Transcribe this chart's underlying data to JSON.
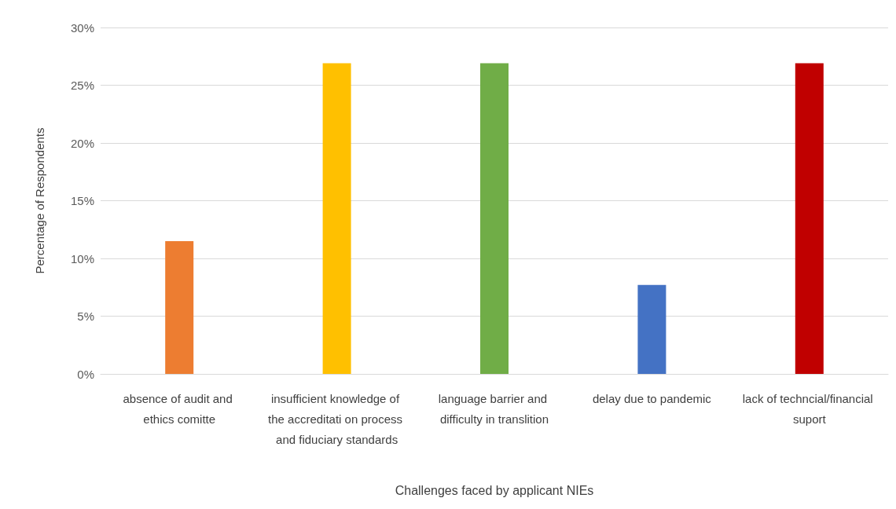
{
  "chart_data": {
    "type": "bar",
    "xlabel": "Challenges faced by applicant NIEs",
    "ylabel": "Percentage of Respondents",
    "categories": [
      "absence of audit and ethics comitte",
      "insufficient knowledge of the accreditati on process and fiduciary standards",
      "language barrier and difficulty in translition",
      "delay due to pandemic",
      "lack of techncial/financial suport"
    ],
    "values": [
      11.5,
      26.9,
      26.9,
      7.7,
      26.9
    ],
    "colors": [
      "#ed7d31",
      "#ffc000",
      "#70ad47",
      "#4472c4",
      "#c00000"
    ],
    "ylim": [
      0,
      30
    ],
    "yticks": [
      {
        "value": 0,
        "label": "0%"
      },
      {
        "value": 5,
        "label": "5%"
      },
      {
        "value": 10,
        "label": "10%"
      },
      {
        "value": 15,
        "label": "15%"
      },
      {
        "value": 20,
        "label": "20%"
      },
      {
        "value": 25,
        "label": "25%"
      },
      {
        "value": 30,
        "label": "30%"
      }
    ],
    "grid": "y"
  }
}
